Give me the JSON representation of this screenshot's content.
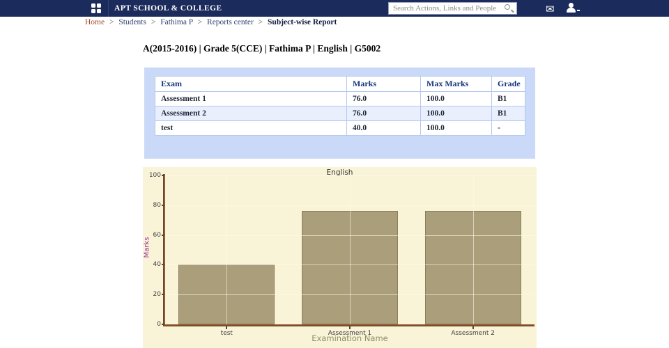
{
  "navbar": {
    "brand": "APT SCHOOL & COLLEGE",
    "search_placeholder": "Search Actions, Links and People",
    "background_color": "#1b2b5c"
  },
  "breadcrumb": {
    "separator": ">",
    "items": [
      {
        "label": "Home"
      },
      {
        "label": "Students"
      },
      {
        "label": "Fathima P"
      },
      {
        "label": "Reports center"
      },
      {
        "label": "Subject-wise Report"
      }
    ]
  },
  "page": {
    "title": "A(2015-2016) | Grade 5(CCE) | Fathima P | English | G5002"
  },
  "report_table": {
    "headers": [
      "Exam",
      "Marks",
      "Max Marks",
      "Grade"
    ],
    "rows": [
      {
        "exam": "Assessment 1",
        "marks": "76.0",
        "max_marks": "100.0",
        "grade": "B1"
      },
      {
        "exam": "Assessment 2",
        "marks": "76.0",
        "max_marks": "100.0",
        "grade": "B1"
      },
      {
        "exam": "test",
        "marks": "40.0",
        "max_marks": "100.0",
        "grade": "-"
      }
    ],
    "panel_color": "#c9d9f7",
    "alt_row_color": "#e9effc"
  },
  "chart_data": {
    "type": "bar",
    "title": "English",
    "categories": [
      "test",
      "Assessment 1",
      "Assessment 2"
    ],
    "values": [
      40,
      76,
      76
    ],
    "xlabel": "Examination Name",
    "ylabel": "Marks",
    "ylim": [
      0,
      100
    ],
    "yticks": [
      0,
      20,
      40,
      60,
      80,
      100
    ],
    "grid": true,
    "legend": false,
    "colors": {
      "background": "#f9f4d8",
      "bar_fill": "#ab9e7b",
      "bar_border": "#8a7d57",
      "axis": "#6b3d1f",
      "ylabel_color": "#993399",
      "xlabel_color": "#8d8d66",
      "tick_color": "#3c3c3c"
    }
  }
}
